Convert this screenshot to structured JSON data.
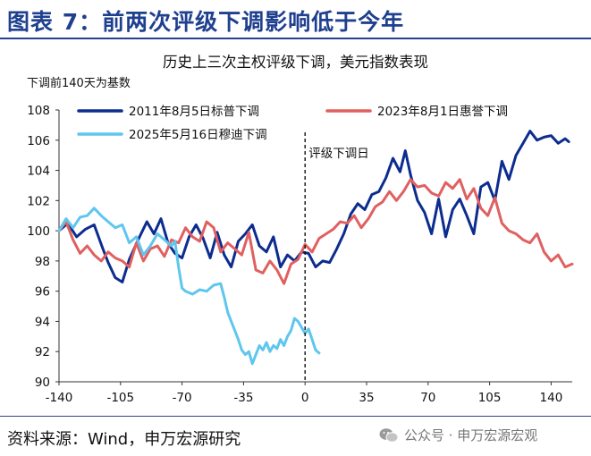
{
  "header": {
    "title": "图表 7：前两次评级下调影响低于今年"
  },
  "footer": {
    "source": "资料来源：Wind，申万宏源研究",
    "watermark": "公众号 · 申万宏源宏观"
  },
  "chart_data": {
    "type": "line",
    "title": "历史上三次主权评级下调，美元指数表现",
    "ylabel": "下调前140天为基数",
    "xlabel": "",
    "xlim": [
      -140,
      152
    ],
    "ylim": [
      90,
      108
    ],
    "x_ticks": [
      -140,
      -105,
      -70,
      -35,
      0,
      35,
      70,
      105,
      140
    ],
    "y_ticks": [
      90,
      92,
      94,
      96,
      98,
      100,
      102,
      104,
      106,
      108
    ],
    "grid": false,
    "legend_position": "top",
    "annotation": {
      "x": 0,
      "label": "评级下调日"
    },
    "series": [
      {
        "name": "2011年8月5日标普下调",
        "color": "#0c2d8f",
        "x": [
          -140,
          -135,
          -130,
          -125,
          -120,
          -115,
          -112,
          -108,
          -104,
          -100,
          -95,
          -90,
          -86,
          -82,
          -78,
          -74,
          -70,
          -66,
          -62,
          -58,
          -54,
          -50,
          -46,
          -42,
          -38,
          -34,
          -30,
          -26,
          -22,
          -18,
          -14,
          -10,
          -6,
          -2,
          2,
          6,
          10,
          14,
          18,
          22,
          26,
          30,
          34,
          38,
          42,
          46,
          50,
          54,
          57,
          60,
          64,
          68,
          72,
          76,
          80,
          84,
          88,
          92,
          96,
          100,
          104,
          108,
          112,
          116,
          120,
          124,
          128,
          132,
          136,
          140,
          144,
          148,
          150
        ],
        "values": [
          100.0,
          100.5,
          99.6,
          100.1,
          100.4,
          98.8,
          97.9,
          96.9,
          96.6,
          98.1,
          99.4,
          100.6,
          99.8,
          100.8,
          99.2,
          98.5,
          98.2,
          99.6,
          100.4,
          99.5,
          98.2,
          99.9,
          98.4,
          97.6,
          99.3,
          99.8,
          100.4,
          99.0,
          98.6,
          99.6,
          97.6,
          98.4,
          98.0,
          98.6,
          98.5,
          97.6,
          98.0,
          97.9,
          98.8,
          99.8,
          101.1,
          101.8,
          101.4,
          102.4,
          102.6,
          103.5,
          104.8,
          103.9,
          105.3,
          103.7,
          102.0,
          101.2,
          99.8,
          102.1,
          99.6,
          101.4,
          102.1,
          101.0,
          99.8,
          102.9,
          103.2,
          102.0,
          104.6,
          103.4,
          105.0,
          105.8,
          106.6,
          106.0,
          106.2,
          106.3,
          105.8,
          106.1,
          105.9
        ]
      },
      {
        "name": "2023年8月1日惠誉下调",
        "color": "#e06060",
        "x": [
          -140,
          -136,
          -132,
          -128,
          -124,
          -120,
          -116,
          -112,
          -108,
          -104,
          -100,
          -96,
          -92,
          -88,
          -84,
          -80,
          -76,
          -72,
          -68,
          -64,
          -60,
          -56,
          -52,
          -48,
          -44,
          -40,
          -36,
          -32,
          -28,
          -24,
          -20,
          -16,
          -12,
          -8,
          -4,
          0,
          4,
          8,
          12,
          16,
          20,
          24,
          28,
          32,
          36,
          40,
          44,
          48,
          52,
          56,
          60,
          64,
          68,
          72,
          76,
          80,
          84,
          88,
          92,
          96,
          100,
          104,
          108,
          112,
          116,
          120,
          124,
          128,
          132,
          136,
          140,
          144,
          148,
          152
        ],
        "values": [
          100.0,
          100.6,
          99.4,
          98.5,
          99.0,
          98.4,
          98.0,
          98.6,
          98.2,
          98.0,
          97.6,
          99.2,
          98.0,
          98.8,
          99.0,
          98.3,
          99.4,
          99.2,
          100.2,
          99.6,
          99.3,
          100.6,
          100.2,
          98.6,
          99.2,
          98.8,
          98.4,
          99.9,
          97.4,
          97.2,
          98.0,
          97.4,
          96.5,
          97.8,
          98.1,
          99.1,
          98.6,
          99.5,
          99.8,
          100.1,
          100.6,
          100.5,
          101.0,
          100.2,
          100.8,
          101.6,
          101.9,
          102.6,
          102.0,
          102.6,
          103.4,
          102.9,
          103.0,
          102.5,
          102.3,
          103.2,
          102.8,
          103.4,
          102.1,
          102.8,
          101.5,
          101.0,
          102.2,
          100.5,
          100.0,
          99.8,
          99.4,
          99.2,
          99.8,
          98.6,
          98.0,
          98.4,
          97.6,
          97.8
        ]
      },
      {
        "name": "2025年5月16日穆迪下调",
        "color": "#5fc6ee",
        "x": [
          -140,
          -136,
          -132,
          -128,
          -124,
          -120,
          -116,
          -112,
          -108,
          -104,
          -100,
          -96,
          -92,
          -88,
          -84,
          -80,
          -76,
          -74,
          -72,
          -70,
          -68,
          -64,
          -60,
          -56,
          -52,
          -48,
          -46,
          -44,
          -42,
          -40,
          -38,
          -36,
          -34,
          -32,
          -30,
          -28,
          -26,
          -24,
          -22,
          -20,
          -18,
          -16,
          -14,
          -12,
          -10,
          -8,
          -6,
          -4,
          -2,
          0,
          2,
          4,
          6,
          8
        ],
        "values": [
          100.0,
          100.8,
          100.2,
          100.9,
          101.0,
          101.5,
          101.0,
          100.6,
          100.2,
          100.4,
          99.2,
          99.6,
          98.4,
          99.0,
          99.8,
          99.4,
          99.0,
          99.3,
          97.6,
          96.2,
          96.0,
          95.8,
          96.1,
          96.0,
          96.4,
          96.5,
          95.6,
          94.6,
          94.0,
          93.4,
          92.8,
          92.1,
          91.8,
          92.0,
          91.2,
          91.8,
          92.4,
          92.1,
          92.6,
          92.0,
          92.4,
          92.2,
          92.8,
          92.4,
          93.0,
          93.4,
          94.2,
          94.0,
          93.6,
          93.2,
          93.5,
          92.8,
          92.1,
          91.9
        ]
      }
    ]
  }
}
